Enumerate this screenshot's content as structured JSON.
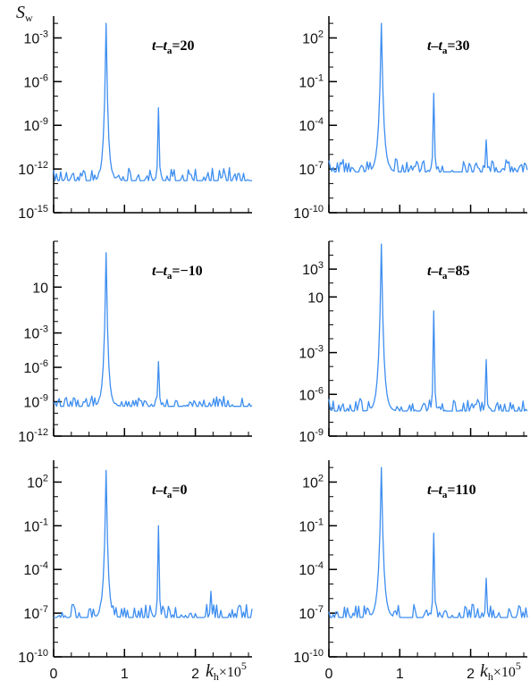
{
  "figure": {
    "y_axis_title": "S",
    "y_axis_title_sub": "w",
    "x_axis_title": "k",
    "x_axis_title_sub": "h",
    "x_axis_title_suffix": "×10",
    "x_axis_title_exp": "5",
    "line_color": "#3d8ef0"
  },
  "chart_data": [
    {
      "type": "line",
      "scale": "log",
      "annotation": {
        "prefix": "t–t",
        "sub": "a",
        "value": "=20"
      },
      "yticks": [
        {
          "base": "10",
          "exp": "-3",
          "exponent": -3
        },
        {
          "base": "10",
          "exp": "-6",
          "exponent": -6
        },
        {
          "base": "10",
          "exp": "-9",
          "exponent": -9
        },
        {
          "base": "10",
          "exp": "-12",
          "exponent": -12
        },
        {
          "base": "10",
          "exp": "-15",
          "exponent": -15
        }
      ],
      "ylim_exp": [
        -15,
        -1.5
      ],
      "xlim": [
        0,
        2.8
      ],
      "xticks": [
        {
          "label": "0",
          "value": 0
        },
        {
          "label": "1",
          "value": 1
        },
        {
          "label": "2",
          "value": 2
        }
      ],
      "baseline_exp": -12.8,
      "peaks": [
        {
          "x": 0.74,
          "exp": -2.0,
          "width": 0.03
        },
        {
          "x": 1.48,
          "exp": -7.8,
          "width": 0.012
        }
      ],
      "seed": 11
    },
    {
      "type": "line",
      "scale": "log",
      "annotation": {
        "prefix": "t–t",
        "sub": "a",
        "value": "=30"
      },
      "yticks": [
        {
          "base": "10",
          "exp": "2",
          "exponent": 2
        },
        {
          "base": "10",
          "exp": "-1",
          "exponent": -1
        },
        {
          "base": "10",
          "exp": "-4",
          "exponent": -4
        },
        {
          "base": "10",
          "exp": "-7",
          "exponent": -7
        },
        {
          "base": "10",
          "exp": "-10",
          "exponent": -10
        }
      ],
      "ylim_exp": [
        -10,
        3.5
      ],
      "xlim": [
        0,
        2.8
      ],
      "xticks": [
        {
          "label": "0",
          "value": 0
        },
        {
          "label": "1",
          "value": 1
        },
        {
          "label": "2",
          "value": 2
        }
      ],
      "baseline_exp": -7.2,
      "peaks": [
        {
          "x": 0.74,
          "exp": 3.0,
          "width": 0.035
        },
        {
          "x": 1.48,
          "exp": -1.8,
          "width": 0.012
        },
        {
          "x": 2.22,
          "exp": -5.0,
          "width": 0.01
        }
      ],
      "seed": 23
    },
    {
      "type": "line",
      "scale": "log",
      "annotation": {
        "prefix": "t–t",
        "sub": "a",
        "value": "=−10"
      },
      "yticks": [
        {
          "base": "10",
          "exp": "",
          "exponent": 1
        },
        {
          "base": "10",
          "exp": "-3",
          "exponent": -3
        },
        {
          "base": "10",
          "exp": "-6",
          "exponent": -6
        },
        {
          "base": "10",
          "exp": "-9",
          "exponent": -9
        },
        {
          "base": "10",
          "exp": "-12",
          "exponent": -12
        }
      ],
      "ylim_exp": [
        -12,
        5
      ],
      "xlim": [
        0,
        2.8
      ],
      "xticks": [
        {
          "label": "0",
          "value": 0
        },
        {
          "label": "1",
          "value": 1
        },
        {
          "label": "2",
          "value": 2
        }
      ],
      "baseline_exp": -9.4,
      "peaks": [
        {
          "x": 0.74,
          "exp": 4.0,
          "width": 0.03
        },
        {
          "x": 1.48,
          "exp": -5.5,
          "width": 0.012
        }
      ],
      "seed": 37
    },
    {
      "type": "line",
      "scale": "log",
      "annotation": {
        "prefix": "t–t",
        "sub": "a",
        "value": "=85"
      },
      "yticks": [
        {
          "base": "10",
          "exp": "3",
          "exponent": 3
        },
        {
          "base": "10",
          "exp": "",
          "exponent": 1
        },
        {
          "base": "10",
          "exp": "-3",
          "exponent": -3
        },
        {
          "base": "10",
          "exp": "-6",
          "exponent": -6
        },
        {
          "base": "10",
          "exp": "-9",
          "exponent": -9
        }
      ],
      "ylim_exp": [
        -9,
        5
      ],
      "xlim": [
        0,
        2.8
      ],
      "xticks": [
        {
          "label": "0",
          "value": 0
        },
        {
          "label": "1",
          "value": 1
        },
        {
          "label": "2",
          "value": 2
        }
      ],
      "baseline_exp": -7.2,
      "peaks": [
        {
          "x": 0.74,
          "exp": 4.8,
          "width": 0.035
        },
        {
          "x": 1.48,
          "exp": 0.0,
          "width": 0.012
        },
        {
          "x": 2.22,
          "exp": -3.5,
          "width": 0.01
        }
      ],
      "seed": 41
    },
    {
      "type": "line",
      "scale": "log",
      "annotation": {
        "prefix": "t–t",
        "sub": "a",
        "value": "=0"
      },
      "yticks": [
        {
          "base": "10",
          "exp": "2",
          "exponent": 2
        },
        {
          "base": "10",
          "exp": "-1",
          "exponent": -1
        },
        {
          "base": "10",
          "exp": "-4",
          "exponent": -4
        },
        {
          "base": "10",
          "exp": "-7",
          "exponent": -7
        },
        {
          "base": "10",
          "exp": "-10",
          "exponent": -10
        }
      ],
      "ylim_exp": [
        -10,
        3.5
      ],
      "xlim": [
        0,
        2.8
      ],
      "xticks": [
        {
          "label": "0",
          "value": 0
        },
        {
          "label": "1",
          "value": 1
        },
        {
          "label": "2",
          "value": 2
        }
      ],
      "baseline_exp": -7.3,
      "peaks": [
        {
          "x": 0.74,
          "exp": 2.8,
          "width": 0.03
        },
        {
          "x": 1.48,
          "exp": -1.0,
          "width": 0.012
        },
        {
          "x": 2.22,
          "exp": -5.5,
          "width": 0.01
        }
      ],
      "seed": 53
    },
    {
      "type": "line",
      "scale": "log",
      "annotation": {
        "prefix": "t–t",
        "sub": "a",
        "value": "=110"
      },
      "yticks": [
        {
          "base": "10",
          "exp": "2",
          "exponent": 2
        },
        {
          "base": "10",
          "exp": "-1",
          "exponent": -1
        },
        {
          "base": "10",
          "exp": "-4",
          "exponent": -4
        },
        {
          "base": "10",
          "exp": "-7",
          "exponent": -7
        },
        {
          "base": "10",
          "exp": "-10",
          "exponent": -10
        }
      ],
      "ylim_exp": [
        -10,
        3.5
      ],
      "xlim": [
        0,
        2.8
      ],
      "xticks": [
        {
          "label": "0",
          "value": 0
        },
        {
          "label": "1",
          "value": 1
        },
        {
          "label": "2",
          "value": 2
        }
      ],
      "baseline_exp": -7.3,
      "peaks": [
        {
          "x": 0.74,
          "exp": 3.0,
          "width": 0.035
        },
        {
          "x": 1.48,
          "exp": -1.5,
          "width": 0.012
        },
        {
          "x": 2.22,
          "exp": -4.6,
          "width": 0.01
        }
      ],
      "seed": 67
    }
  ]
}
